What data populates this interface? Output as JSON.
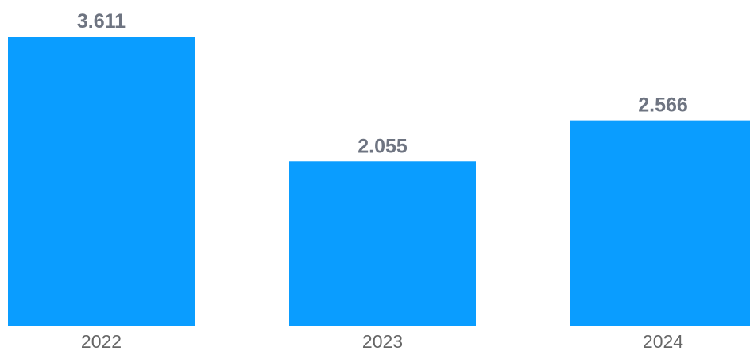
{
  "chart_data": {
    "type": "bar",
    "categories": [
      "2022",
      "2023",
      "2024"
    ],
    "values": [
      3.611,
      2.055,
      2.566
    ],
    "value_labels": [
      "3.611",
      "2.055",
      "2.566"
    ],
    "title": "",
    "xlabel": "",
    "ylabel": "",
    "ylim": [
      0,
      3.611
    ],
    "grid": false,
    "legend": "none",
    "colors": {
      "bar": "#0a9dff",
      "value_label": "#6e7481",
      "tick_label": "#666666"
    }
  }
}
